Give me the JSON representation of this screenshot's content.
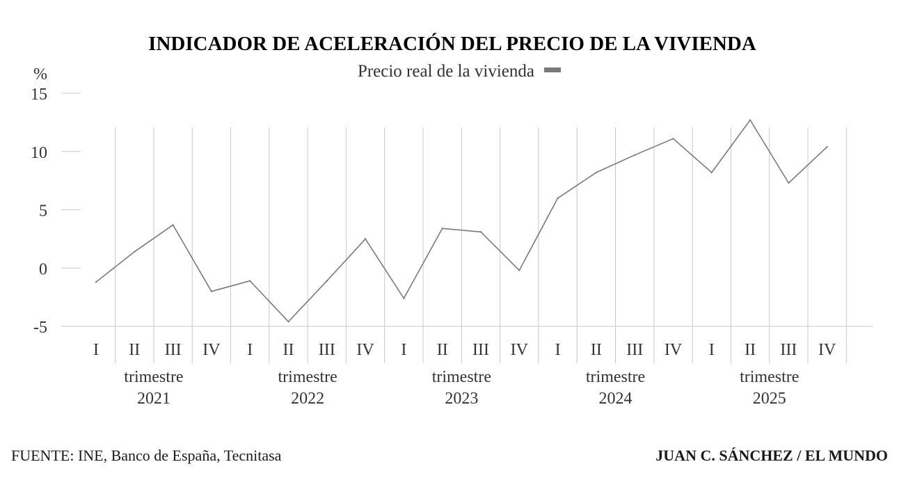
{
  "chart_data": {
    "type": "line",
    "title": "INDICADOR DE ACELERACIÓN DEL PRECIO DE LA VIVIENDA",
    "ylabel": "%",
    "ylim": [
      -5,
      15
    ],
    "yticks": [
      15,
      10,
      5,
      0,
      -5
    ],
    "grid": "vertical",
    "legend_position": "top-center",
    "quarters": [
      "I",
      "II",
      "III",
      "IV",
      "I",
      "II",
      "III",
      "IV",
      "I",
      "II",
      "III",
      "IV",
      "I",
      "II",
      "III",
      "IV",
      "I",
      "II",
      "III",
      "IV"
    ],
    "year_groups": [
      {
        "label": "trimestre",
        "year": "2021"
      },
      {
        "label": "trimestre",
        "year": "2022"
      },
      {
        "label": "trimestre",
        "year": "2023"
      },
      {
        "label": "trimestre",
        "year": "2024"
      },
      {
        "label": "trimestre",
        "year": "2025"
      }
    ],
    "series": [
      {
        "name": "Precio real de la vivienda",
        "color": "#7a7a7a",
        "values": [
          -1.2,
          1.4,
          3.7,
          -2.0,
          -1.1,
          -4.6,
          -1.1,
          2.5,
          -2.6,
          3.4,
          3.1,
          -0.2,
          6.0,
          8.2,
          9.7,
          11.1,
          8.2,
          12.7,
          7.3,
          10.4
        ]
      }
    ]
  },
  "footer": {
    "source": "FUENTE: INE, Banco de España, Tecnitasa",
    "credit": "JUAN C. SÁNCHEZ / EL MUNDO"
  }
}
